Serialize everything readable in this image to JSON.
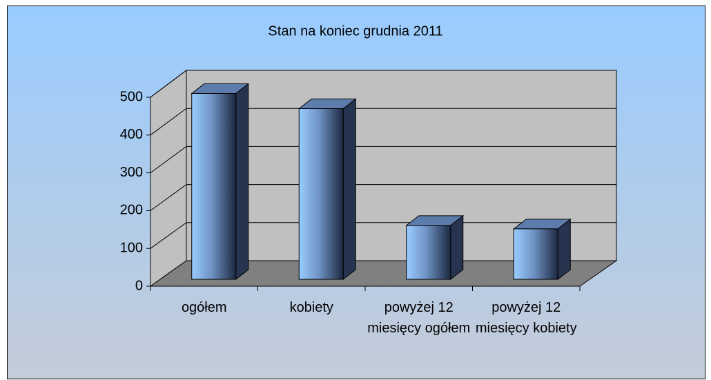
{
  "chart_data": {
    "type": "bar3d",
    "title": "Stan na koniec grudnia 2011",
    "categories": [
      "ogółem",
      "kobiety",
      "powyżej 12 miesięcy ogółem",
      "powyżej 12 miesięcy kobiety"
    ],
    "values": [
      490,
      450,
      142,
      133
    ],
    "color": "#99ccff",
    "ylim": [
      0,
      500
    ],
    "yticks": [
      0,
      100,
      200,
      300,
      400,
      500
    ],
    "grid": true
  }
}
